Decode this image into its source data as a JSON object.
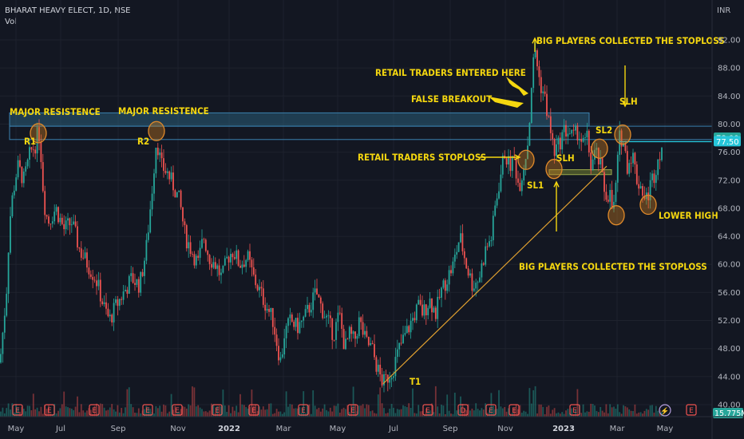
{
  "header": {
    "symbol": "BHARAT HEAVY ELECT, 1D, NSE",
    "volume_label": "Vol",
    "currency": "INR"
  },
  "colors": {
    "background": "#131722",
    "up": "#26a69a",
    "down": "#ef5350",
    "annotation": "#f5d70f",
    "zone": "#2a5c78",
    "price_line": "#26c6da"
  },
  "chart_data": {
    "type": "candlestick",
    "title": "BHARAT HEAVY ELECT, 1D, NSE",
    "y_axis": {
      "unit": "INR",
      "ticks": [
        "92.00",
        "88.00",
        "84.00",
        "80.00",
        "76.00",
        "72.00",
        "68.00",
        "64.00",
        "60.00",
        "56.00",
        "52.00",
        "48.00",
        "44.00",
        "40.00"
      ],
      "range": [
        39.4,
        95.4
      ]
    },
    "x_axis": {
      "ticks": [
        {
          "label": "May",
          "bold": false
        },
        {
          "label": "Jul",
          "bold": false
        },
        {
          "label": "Sep",
          "bold": false
        },
        {
          "label": "Nov",
          "bold": false
        },
        {
          "label": "2022",
          "bold": true
        },
        {
          "label": "Mar",
          "bold": false
        },
        {
          "label": "May",
          "bold": false
        },
        {
          "label": "Jul",
          "bold": false
        },
        {
          "label": "Sep",
          "bold": false
        },
        {
          "label": "Nov",
          "bold": false
        },
        {
          "label": "2023",
          "bold": true
        },
        {
          "label": "Mar",
          "bold": false
        },
        {
          "label": "May",
          "bold": false
        }
      ]
    },
    "price_path": [
      [
        0,
        46
      ],
      [
        8,
        56
      ],
      [
        12,
        66
      ],
      [
        16,
        70
      ],
      [
        22,
        74
      ],
      [
        30,
        72
      ],
      [
        38,
        76
      ],
      [
        44,
        77
      ],
      [
        48,
        79
      ],
      [
        50,
        78
      ],
      [
        55,
        69
      ],
      [
        60,
        66
      ],
      [
        70,
        68
      ],
      [
        80,
        65
      ],
      [
        90,
        66
      ],
      [
        100,
        62
      ],
      [
        110,
        60
      ],
      [
        120,
        58
      ],
      [
        130,
        54
      ],
      [
        137,
        52
      ],
      [
        145,
        54
      ],
      [
        155,
        56
      ],
      [
        165,
        58
      ],
      [
        175,
        57
      ],
      [
        183,
        62
      ],
      [
        190,
        70
      ],
      [
        196,
        78
      ],
      [
        202,
        74
      ],
      [
        210,
        73
      ],
      [
        218,
        71
      ],
      [
        225,
        69
      ],
      [
        232,
        64
      ],
      [
        240,
        62
      ],
      [
        248,
        60
      ],
      [
        255,
        64
      ],
      [
        262,
        61
      ],
      [
        270,
        60
      ],
      [
        278,
        58
      ],
      [
        285,
        61
      ],
      [
        292,
        62
      ],
      [
        300,
        60
      ],
      [
        310,
        61
      ],
      [
        318,
        58
      ],
      [
        326,
        56
      ],
      [
        334,
        54
      ],
      [
        342,
        52
      ],
      [
        348,
        48
      ],
      [
        352,
        46
      ],
      [
        356,
        50
      ],
      [
        364,
        52
      ],
      [
        372,
        51
      ],
      [
        380,
        52
      ],
      [
        388,
        54
      ],
      [
        396,
        56
      ],
      [
        402,
        54
      ],
      [
        410,
        52
      ],
      [
        418,
        50
      ],
      [
        425,
        53
      ],
      [
        432,
        48
      ],
      [
        438,
        50
      ],
      [
        444,
        49
      ],
      [
        450,
        52
      ],
      [
        458,
        49
      ],
      [
        466,
        48
      ],
      [
        473,
        45
      ],
      [
        480,
        43
      ],
      [
        486,
        44
      ],
      [
        492,
        45
      ],
      [
        500,
        48
      ],
      [
        508,
        50
      ],
      [
        516,
        52
      ],
      [
        524,
        54
      ],
      [
        530,
        53
      ],
      [
        538,
        55
      ],
      [
        546,
        53
      ],
      [
        552,
        56
      ],
      [
        560,
        58
      ],
      [
        568,
        60
      ],
      [
        576,
        64
      ],
      [
        584,
        60
      ],
      [
        592,
        57
      ],
      [
        600,
        58
      ],
      [
        608,
        62
      ],
      [
        616,
        64
      ],
      [
        620,
        68
      ],
      [
        626,
        72
      ],
      [
        632,
        76
      ],
      [
        638,
        74
      ],
      [
        644,
        75
      ],
      [
        650,
        71
      ],
      [
        656,
        74
      ],
      [
        662,
        78
      ],
      [
        666,
        86
      ],
      [
        670,
        91
      ],
      [
        676,
        86
      ],
      [
        682,
        84
      ],
      [
        688,
        80
      ],
      [
        694,
        76
      ],
      [
        700,
        77
      ],
      [
        706,
        79
      ],
      [
        712,
        79
      ],
      [
        718,
        78
      ],
      [
        724,
        79
      ],
      [
        730,
        77
      ],
      [
        736,
        78
      ],
      [
        740,
        74
      ],
      [
        746,
        76
      ],
      [
        752,
        74
      ],
      [
        758,
        70
      ],
      [
        764,
        70
      ],
      [
        768,
        67
      ],
      [
        772,
        72
      ],
      [
        776,
        78
      ],
      [
        780,
        78
      ],
      [
        786,
        74
      ],
      [
        792,
        76
      ],
      [
        798,
        72
      ],
      [
        804,
        71
      ],
      [
        808,
        69
      ],
      [
        812,
        70
      ],
      [
        816,
        72
      ],
      [
        820,
        73
      ],
      [
        826,
        76
      ],
      [
        830,
        77
      ]
    ],
    "horizontal_level": 77.5,
    "price_labels": [
      {
        "value": "78.00",
        "price": 78.0,
        "color": "#26a69a"
      },
      {
        "value": "77.50",
        "price": 77.5,
        "color": "#26c6da"
      }
    ],
    "volume_last": "15.775M"
  },
  "annotations": {
    "major_res_1": "MAJOR RESISTENCE",
    "major_res_2": "MAJOR RESISTENCE",
    "r1": "R1",
    "r2": "R2",
    "big_players_top": "BIG PLAYERS COLLECTED THE STOPLOSS",
    "retail_entered": "RETAIL TRADERS ENTERED HERE",
    "false_breakout": "FALSE BREAKOUT",
    "retail_stoploss": "RETAIL TRADERS STOPLOSS",
    "sl1": "SL1",
    "slh_mid": "SLH",
    "sl2": "SL2",
    "slh_right": "SLH",
    "big_players_bottom": "BIG PLAYERS COLLECTED THE STOPLOSS",
    "lower_high": "LOWER HIGH",
    "t1": "T1"
  },
  "event_markers": [
    {
      "label": "E"
    },
    {
      "label": "E"
    },
    {
      "label": "E"
    },
    {
      "label": "E"
    },
    {
      "label": "E"
    },
    {
      "label": "E"
    },
    {
      "label": "E"
    },
    {
      "label": "E"
    },
    {
      "label": "E"
    },
    {
      "label": "D"
    },
    {
      "label": "E"
    },
    {
      "label": "E"
    },
    {
      "label": "E"
    },
    {
      "label": "E"
    },
    {
      "label": "E"
    }
  ]
}
